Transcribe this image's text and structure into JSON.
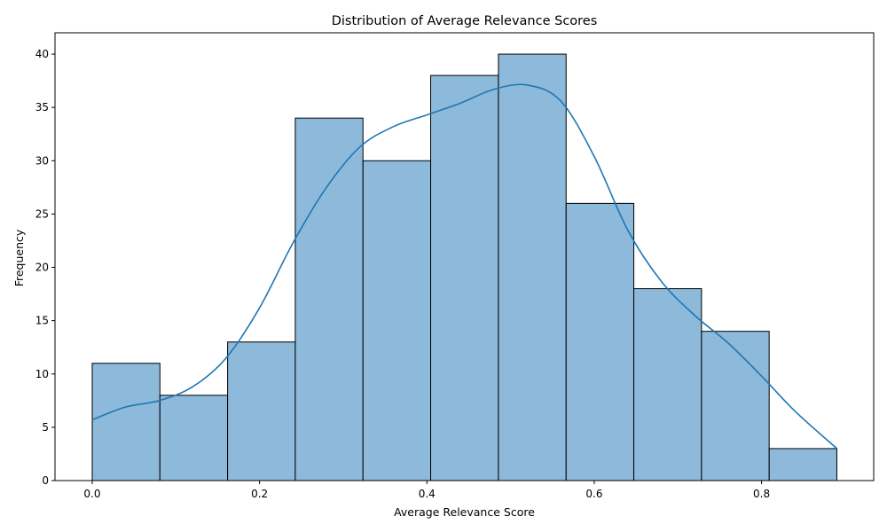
{
  "chart_data": {
    "type": "bar",
    "title": "Distribution of Average Relevance Scores",
    "xlabel": "Average Relevance Score",
    "ylabel": "Frequency",
    "xlim": [
      -0.0445,
      0.934
    ],
    "ylim": [
      0,
      42
    ],
    "bin_width": 0.0809,
    "bins": [
      {
        "start": 0.0,
        "end": 0.0809,
        "count": 11
      },
      {
        "start": 0.0809,
        "end": 0.1618,
        "count": 8
      },
      {
        "start": 0.1618,
        "end": 0.2427,
        "count": 13
      },
      {
        "start": 0.2427,
        "end": 0.3236,
        "count": 34
      },
      {
        "start": 0.3236,
        "end": 0.4045,
        "count": 30
      },
      {
        "start": 0.4045,
        "end": 0.4855,
        "count": 38
      },
      {
        "start": 0.4855,
        "end": 0.5664,
        "count": 40
      },
      {
        "start": 0.5664,
        "end": 0.6473,
        "count": 26
      },
      {
        "start": 0.6473,
        "end": 0.7282,
        "count": 18
      },
      {
        "start": 0.7282,
        "end": 0.8091,
        "count": 14
      },
      {
        "start": 0.8091,
        "end": 0.89,
        "count": 3
      }
    ],
    "x_ticks": [
      {
        "value": 0.0,
        "label": "0.0"
      },
      {
        "value": 0.2,
        "label": "0.2"
      },
      {
        "value": 0.4,
        "label": "0.4"
      },
      {
        "value": 0.6,
        "label": "0.6"
      },
      {
        "value": 0.8,
        "label": "0.8"
      }
    ],
    "y_ticks": [
      {
        "value": 0,
        "label": "0"
      },
      {
        "value": 5,
        "label": "5"
      },
      {
        "value": 10,
        "label": "10"
      },
      {
        "value": 15,
        "label": "15"
      },
      {
        "value": 20,
        "label": "20"
      },
      {
        "value": 25,
        "label": "25"
      },
      {
        "value": 30,
        "label": "30"
      },
      {
        "value": 35,
        "label": "35"
      },
      {
        "value": 40,
        "label": "40"
      }
    ],
    "kde": {
      "x": [
        0.0,
        0.04,
        0.08,
        0.12,
        0.16,
        0.2,
        0.24,
        0.28,
        0.32,
        0.36,
        0.4,
        0.44,
        0.48,
        0.52,
        0.56,
        0.6,
        0.64,
        0.68,
        0.72,
        0.76,
        0.8,
        0.84,
        0.89
      ],
      "y": [
        5.7,
        6.9,
        7.5,
        8.8,
        11.5,
        16.2,
        22.3,
        27.5,
        31.3,
        33.2,
        34.3,
        35.4,
        36.7,
        37.1,
        35.6,
        30.4,
        23.5,
        18.7,
        15.5,
        12.9,
        9.8,
        6.5,
        3.0
      ]
    },
    "colors": {
      "bar_fill": "#8db9da",
      "bar_edge": "#000000",
      "kde_line": "#1f77b4"
    },
    "grid": false,
    "legend": "none"
  }
}
